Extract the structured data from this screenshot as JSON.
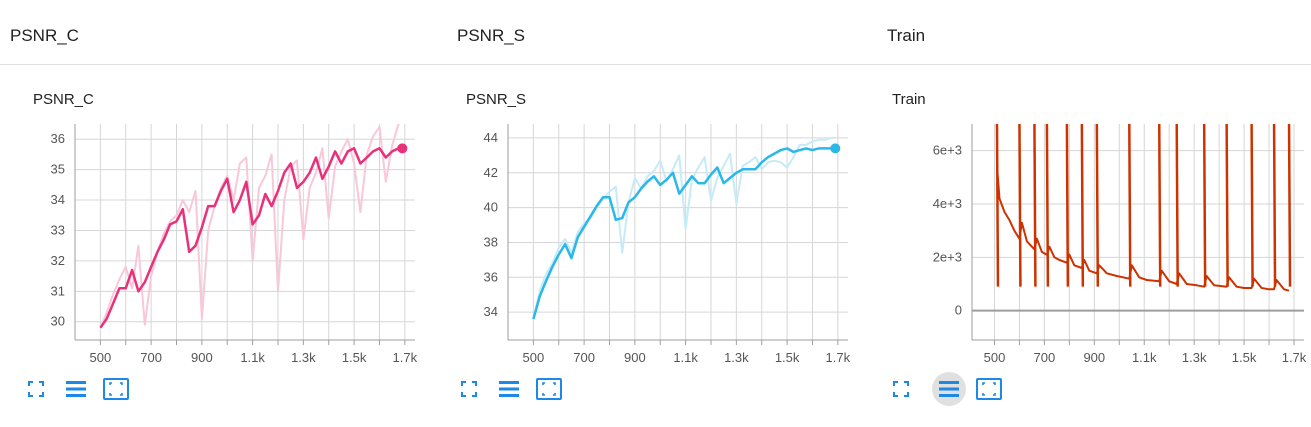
{
  "groups": [
    {
      "title": "PSNR_C"
    },
    {
      "title": "PSNR_S"
    },
    {
      "title": "Train"
    }
  ],
  "colors": {
    "psnr_c": "#e8317a",
    "psnr_c_raw": "#f9c7da",
    "psnr_s": "#2bb8e8",
    "psnr_s_raw": "#c6ebf8",
    "train": "#cc3300",
    "grid": "#d6d6d6",
    "icon": "#1e88e5"
  },
  "toolbar_icons": [
    "fullscreen-icon",
    "toggle-log-scale-icon",
    "fit-domain-icon"
  ],
  "chart_data": [
    {
      "type": "line",
      "title": "PSNR_C",
      "xlabel": "",
      "ylabel": "",
      "xlim": [
        400,
        1740
      ],
      "ylim": [
        29.4,
        36.5
      ],
      "x_ticks": [
        500,
        600,
        700,
        800,
        900,
        1000,
        1100,
        1200,
        1300,
        1400,
        1500,
        1600,
        1700
      ],
      "x_tick_labels": [
        "500",
        "700",
        "900",
        "1.1k",
        "1.3k",
        "1.5k",
        "1.7k"
      ],
      "x_tick_label_values": [
        500,
        700,
        900,
        1100,
        1300,
        1500,
        1700
      ],
      "y_ticks": [
        30,
        31,
        32,
        33,
        34,
        35,
        36
      ],
      "y_tick_labels": [
        "30",
        "31",
        "32",
        "33",
        "34",
        "35",
        "36"
      ],
      "grid": true,
      "series": [
        {
          "role": "raw",
          "x": [
            500,
            525,
            550,
            575,
            600,
            625,
            650,
            675,
            700,
            725,
            750,
            775,
            800,
            825,
            850,
            875,
            900,
            925,
            950,
            975,
            1000,
            1025,
            1050,
            1075,
            1100,
            1125,
            1150,
            1175,
            1200,
            1225,
            1250,
            1275,
            1300,
            1325,
            1350,
            1375,
            1400,
            1425,
            1450,
            1475,
            1500,
            1525,
            1550,
            1575,
            1600,
            1625,
            1650,
            1675,
            1690
          ],
          "values": [
            29.8,
            30.3,
            30.9,
            31.4,
            31.8,
            31.1,
            32.5,
            29.9,
            31.5,
            32.3,
            32.9,
            33.3,
            33.5,
            34.0,
            33.6,
            34.3,
            30.1,
            33.0,
            33.8,
            34.4,
            34.8,
            34.0,
            35.2,
            35.4,
            32.0,
            34.4,
            34.8,
            35.5,
            31.0,
            34.0,
            35.1,
            35.3,
            32.7,
            34.4,
            34.9,
            35.7,
            33.4,
            35.1,
            35.6,
            36.0,
            35.2,
            33.6,
            35.5,
            36.1,
            36.4,
            34.6,
            35.8,
            36.5,
            36.6
          ]
        },
        {
          "role": "smoothed",
          "x": [
            500,
            525,
            550,
            575,
            600,
            625,
            650,
            675,
            700,
            725,
            750,
            775,
            800,
            825,
            850,
            875,
            900,
            925,
            950,
            975,
            1000,
            1025,
            1050,
            1075,
            1100,
            1125,
            1150,
            1175,
            1200,
            1225,
            1250,
            1275,
            1300,
            1325,
            1350,
            1375,
            1400,
            1425,
            1450,
            1475,
            1500,
            1525,
            1550,
            1575,
            1600,
            1625,
            1650,
            1675
          ],
          "values": [
            29.8,
            30.1,
            30.6,
            31.1,
            31.1,
            31.7,
            31.0,
            31.3,
            31.8,
            32.3,
            32.7,
            33.2,
            33.3,
            33.7,
            32.3,
            32.5,
            33.1,
            33.8,
            33.8,
            34.3,
            34.7,
            33.6,
            34.0,
            34.6,
            33.2,
            33.5,
            34.2,
            33.8,
            34.3,
            34.9,
            35.2,
            34.4,
            34.6,
            34.9,
            35.4,
            34.7,
            35.1,
            35.6,
            35.2,
            35.6,
            35.7,
            35.2,
            35.4,
            35.6,
            35.7,
            35.4,
            35.6,
            35.7
          ]
        }
      ],
      "end_marker": {
        "x": 1690,
        "y": 35.7
      }
    },
    {
      "type": "line",
      "title": "PSNR_S",
      "xlabel": "",
      "ylabel": "",
      "xlim": [
        400,
        1740
      ],
      "ylim": [
        32.4,
        44.8
      ],
      "x_ticks": [
        500,
        600,
        700,
        800,
        900,
        1000,
        1100,
        1200,
        1300,
        1400,
        1500,
        1600,
        1700
      ],
      "x_tick_labels": [
        "500",
        "700",
        "900",
        "1.1k",
        "1.3k",
        "1.5k",
        "1.7k"
      ],
      "x_tick_label_values": [
        500,
        700,
        900,
        1100,
        1300,
        1500,
        1700
      ],
      "y_ticks": [
        34,
        36,
        38,
        40,
        42,
        44
      ],
      "y_tick_labels": [
        "34",
        "36",
        "38",
        "40",
        "42",
        "44"
      ],
      "grid": true,
      "series": [
        {
          "role": "raw",
          "x": [
            500,
            525,
            550,
            575,
            600,
            625,
            650,
            675,
            700,
            725,
            750,
            775,
            800,
            825,
            850,
            875,
            900,
            925,
            950,
            975,
            1000,
            1025,
            1050,
            1075,
            1100,
            1125,
            1150,
            1175,
            1200,
            1225,
            1250,
            1275,
            1300,
            1325,
            1350,
            1375,
            1400,
            1425,
            1450,
            1475,
            1500,
            1525,
            1550,
            1575,
            1600,
            1625,
            1650,
            1675,
            1690
          ],
          "values": [
            33.6,
            35.2,
            36.2,
            36.8,
            37.7,
            38.2,
            37.4,
            38.6,
            39.1,
            39.4,
            40.0,
            40.5,
            40.9,
            41.2,
            37.4,
            40.3,
            41.7,
            41.1,
            41.8,
            42.1,
            42.7,
            41.5,
            42.2,
            43.0,
            38.8,
            41.6,
            42.3,
            42.9,
            40.4,
            41.7,
            42.4,
            43.1,
            40.2,
            42.4,
            42.6,
            42.9,
            42.2,
            42.6,
            42.7,
            42.6,
            42.3,
            42.9,
            43.6,
            43.6,
            43.8,
            43.9,
            43.9,
            44.0,
            44.0
          ]
        },
        {
          "role": "smoothed",
          "x": [
            500,
            525,
            550,
            575,
            600,
            625,
            650,
            675,
            700,
            725,
            750,
            775,
            800,
            825,
            850,
            875,
            900,
            925,
            950,
            975,
            1000,
            1025,
            1050,
            1075,
            1100,
            1125,
            1150,
            1175,
            1200,
            1225,
            1250,
            1275,
            1300,
            1325,
            1350,
            1375,
            1400,
            1425,
            1450,
            1475,
            1500,
            1525,
            1550,
            1575,
            1600,
            1625,
            1650,
            1675,
            1690
          ],
          "values": [
            33.6,
            34.9,
            35.8,
            36.6,
            37.3,
            37.9,
            37.1,
            38.3,
            38.9,
            39.5,
            40.1,
            40.6,
            40.6,
            39.3,
            39.4,
            40.3,
            40.6,
            41.1,
            41.5,
            41.8,
            41.3,
            41.6,
            42.0,
            40.8,
            41.3,
            41.8,
            41.4,
            41.4,
            41.9,
            42.3,
            41.4,
            41.7,
            42.0,
            42.2,
            42.2,
            42.2,
            42.6,
            42.9,
            43.1,
            43.3,
            43.4,
            43.2,
            43.3,
            43.4,
            43.3,
            43.4,
            43.4,
            43.4,
            43.4
          ]
        }
      ],
      "end_marker": {
        "x": 1690,
        "y": 43.4
      }
    },
    {
      "type": "line",
      "title": "Train",
      "xlabel": "",
      "ylabel": "",
      "xlim": [
        410,
        1740
      ],
      "ylim": [
        -1100,
        7000
      ],
      "x_ticks": [
        500,
        600,
        700,
        800,
        900,
        1000,
        1100,
        1200,
        1300,
        1400,
        1500,
        1600,
        1700
      ],
      "x_tick_labels": [
        "500",
        "700",
        "900",
        "1.1k",
        "1.3k",
        "1.5k",
        "1.7k"
      ],
      "x_tick_label_values": [
        500,
        700,
        900,
        1100,
        1300,
        1500,
        1700
      ],
      "y_ticks": [
        0,
        2000,
        4000,
        6000
      ],
      "y_tick_labels": [
        "0",
        "2e+3",
        "4e+3",
        "6e+3"
      ],
      "grid": true,
      "spikes_x": [
        510,
        600,
        660,
        710,
        790,
        850,
        910,
        1040,
        1160,
        1230,
        1340,
        1430,
        1530,
        1620,
        1680
      ],
      "baseline_y": 0,
      "series": [
        {
          "role": "raw",
          "x": [
            510,
            520,
            540,
            560,
            580,
            600,
            610,
            630,
            650,
            660,
            670,
            690,
            710,
            720,
            740,
            760,
            790,
            800,
            820,
            850,
            860,
            880,
            910,
            920,
            950,
            990,
            1040,
            1050,
            1080,
            1110,
            1160,
            1170,
            1200,
            1230,
            1240,
            1270,
            1310,
            1340,
            1350,
            1380,
            1430,
            1440,
            1470,
            1500,
            1530,
            1540,
            1570,
            1600,
            1620,
            1630,
            1660,
            1680
          ],
          "values": [
            5400,
            4200,
            3700,
            3400,
            3000,
            2700,
            3300,
            2600,
            2400,
            2300,
            2700,
            2200,
            2100,
            2400,
            2000,
            1900,
            1800,
            2100,
            1700,
            1600,
            1900,
            1500,
            1400,
            1700,
            1400,
            1300,
            1200,
            1700,
            1250,
            1150,
            1100,
            1500,
            1100,
            1000,
            1400,
            1000,
            950,
            900,
            1300,
            950,
            900,
            1250,
            900,
            850,
            850,
            1200,
            850,
            800,
            800,
            1150,
            800,
            750
          ]
        }
      ]
    }
  ]
}
